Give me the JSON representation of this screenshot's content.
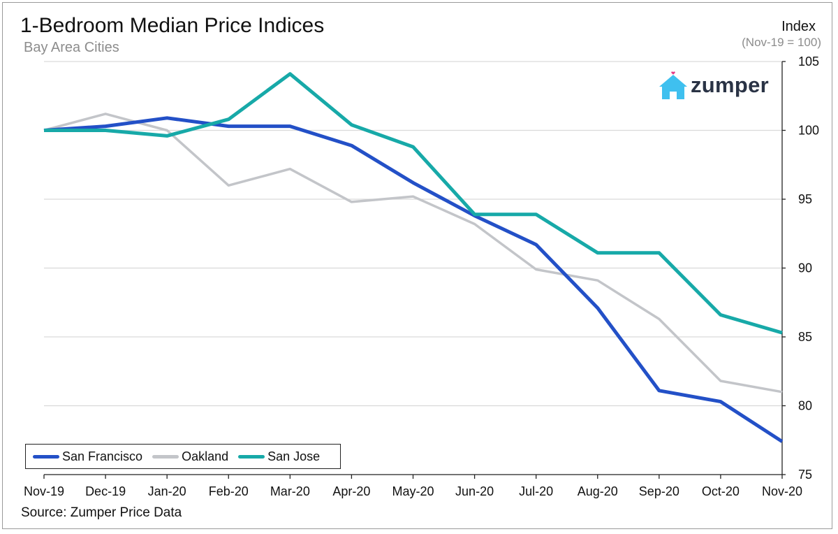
{
  "header": {
    "title": "1-Bedroom Median Price Indices",
    "subtitle": "Bay Area Cities",
    "y_title": "Index",
    "y_note": "(Nov-19 = 100)"
  },
  "footer": {
    "source": "Source: Zumper Price Data"
  },
  "logo": {
    "text": "zumper",
    "icon": "house-icon"
  },
  "colors": {
    "grid": "#d9d9d9"
  },
  "chart_data": {
    "type": "line",
    "title": "1-Bedroom Median Price Indices",
    "subtitle": "Bay Area Cities",
    "ylabel": "Index",
    "ylabel_note": "(Nov-19 = 100)",
    "x": [
      "Nov-19",
      "Dec-19",
      "Jan-20",
      "Feb-20",
      "Mar-20",
      "Apr-20",
      "May-20",
      "Jun-20",
      "Jul-20",
      "Aug-20",
      "Sep-20",
      "Oct-20",
      "Nov-20"
    ],
    "yticks": [
      75,
      80,
      85,
      90,
      95,
      100,
      105
    ],
    "ylim": [
      75,
      105
    ],
    "grid": true,
    "y_axis_side": "right",
    "legend_position": "bottom-left",
    "series": [
      {
        "name": "San Francisco",
        "color": "#2350c7",
        "values": [
          100,
          100.3,
          100.9,
          100.3,
          100.3,
          98.9,
          96.2,
          93.8,
          91.7,
          87.1,
          81.1,
          80.3,
          77.4
        ]
      },
      {
        "name": "Oakland",
        "color": "#c3c5c9",
        "values": [
          100,
          101.2,
          100.0,
          96.0,
          97.2,
          94.8,
          95.2,
          93.2,
          89.9,
          89.1,
          86.3,
          81.8,
          81.0
        ]
      },
      {
        "name": "San Jose",
        "color": "#17a9a8",
        "values": [
          100,
          100,
          99.6,
          100.8,
          104.1,
          100.4,
          98.8,
          93.9,
          93.9,
          91.1,
          91.1,
          86.6,
          85.3
        ]
      }
    ]
  }
}
